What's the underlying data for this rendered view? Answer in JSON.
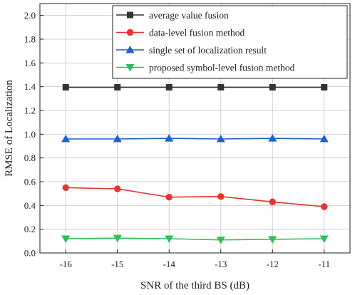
{
  "chart_data": {
    "type": "line",
    "xlabel": "SNR of the third BS (dB)",
    "ylabel": "RMSE of Localization",
    "x": [
      -16,
      -15,
      -14,
      -13,
      -12,
      -11
    ],
    "xlim": [
      -16.5,
      -10.5
    ],
    "ylim": [
      0.0,
      2.1
    ],
    "yticks": [
      0.0,
      0.2,
      0.4,
      0.6,
      0.8,
      1.0,
      1.2,
      1.4,
      1.6,
      1.8,
      2.0
    ],
    "ytick_labels": [
      "0.0",
      "0.2",
      "0.4",
      "0.6",
      "0.8",
      "1.0",
      "1.2",
      "1.4",
      "1.6",
      "1.8",
      "2.0"
    ],
    "xtick_labels": [
      "-16",
      "-15",
      "-14",
      "-13",
      "-12",
      "-11"
    ],
    "grid": true,
    "legend_position": "top-right",
    "series": [
      {
        "name": "average value fusion",
        "color": "#333333",
        "marker": "square",
        "values": [
          1.395,
          1.395,
          1.395,
          1.395,
          1.395,
          1.395
        ]
      },
      {
        "name": "data-level fusion method",
        "color": "#e8332f",
        "marker": "circle",
        "values": [
          0.55,
          0.54,
          0.47,
          0.475,
          0.43,
          0.39
        ]
      },
      {
        "name": "single set of localization result",
        "color": "#1f5fd1",
        "marker": "triangle-up",
        "values": [
          0.96,
          0.96,
          0.965,
          0.96,
          0.965,
          0.96
        ]
      },
      {
        "name": "proposed symbol-level fusion method",
        "color": "#2fbf5a",
        "marker": "triangle-down",
        "values": [
          0.12,
          0.125,
          0.12,
          0.11,
          0.115,
          0.12
        ]
      }
    ]
  }
}
